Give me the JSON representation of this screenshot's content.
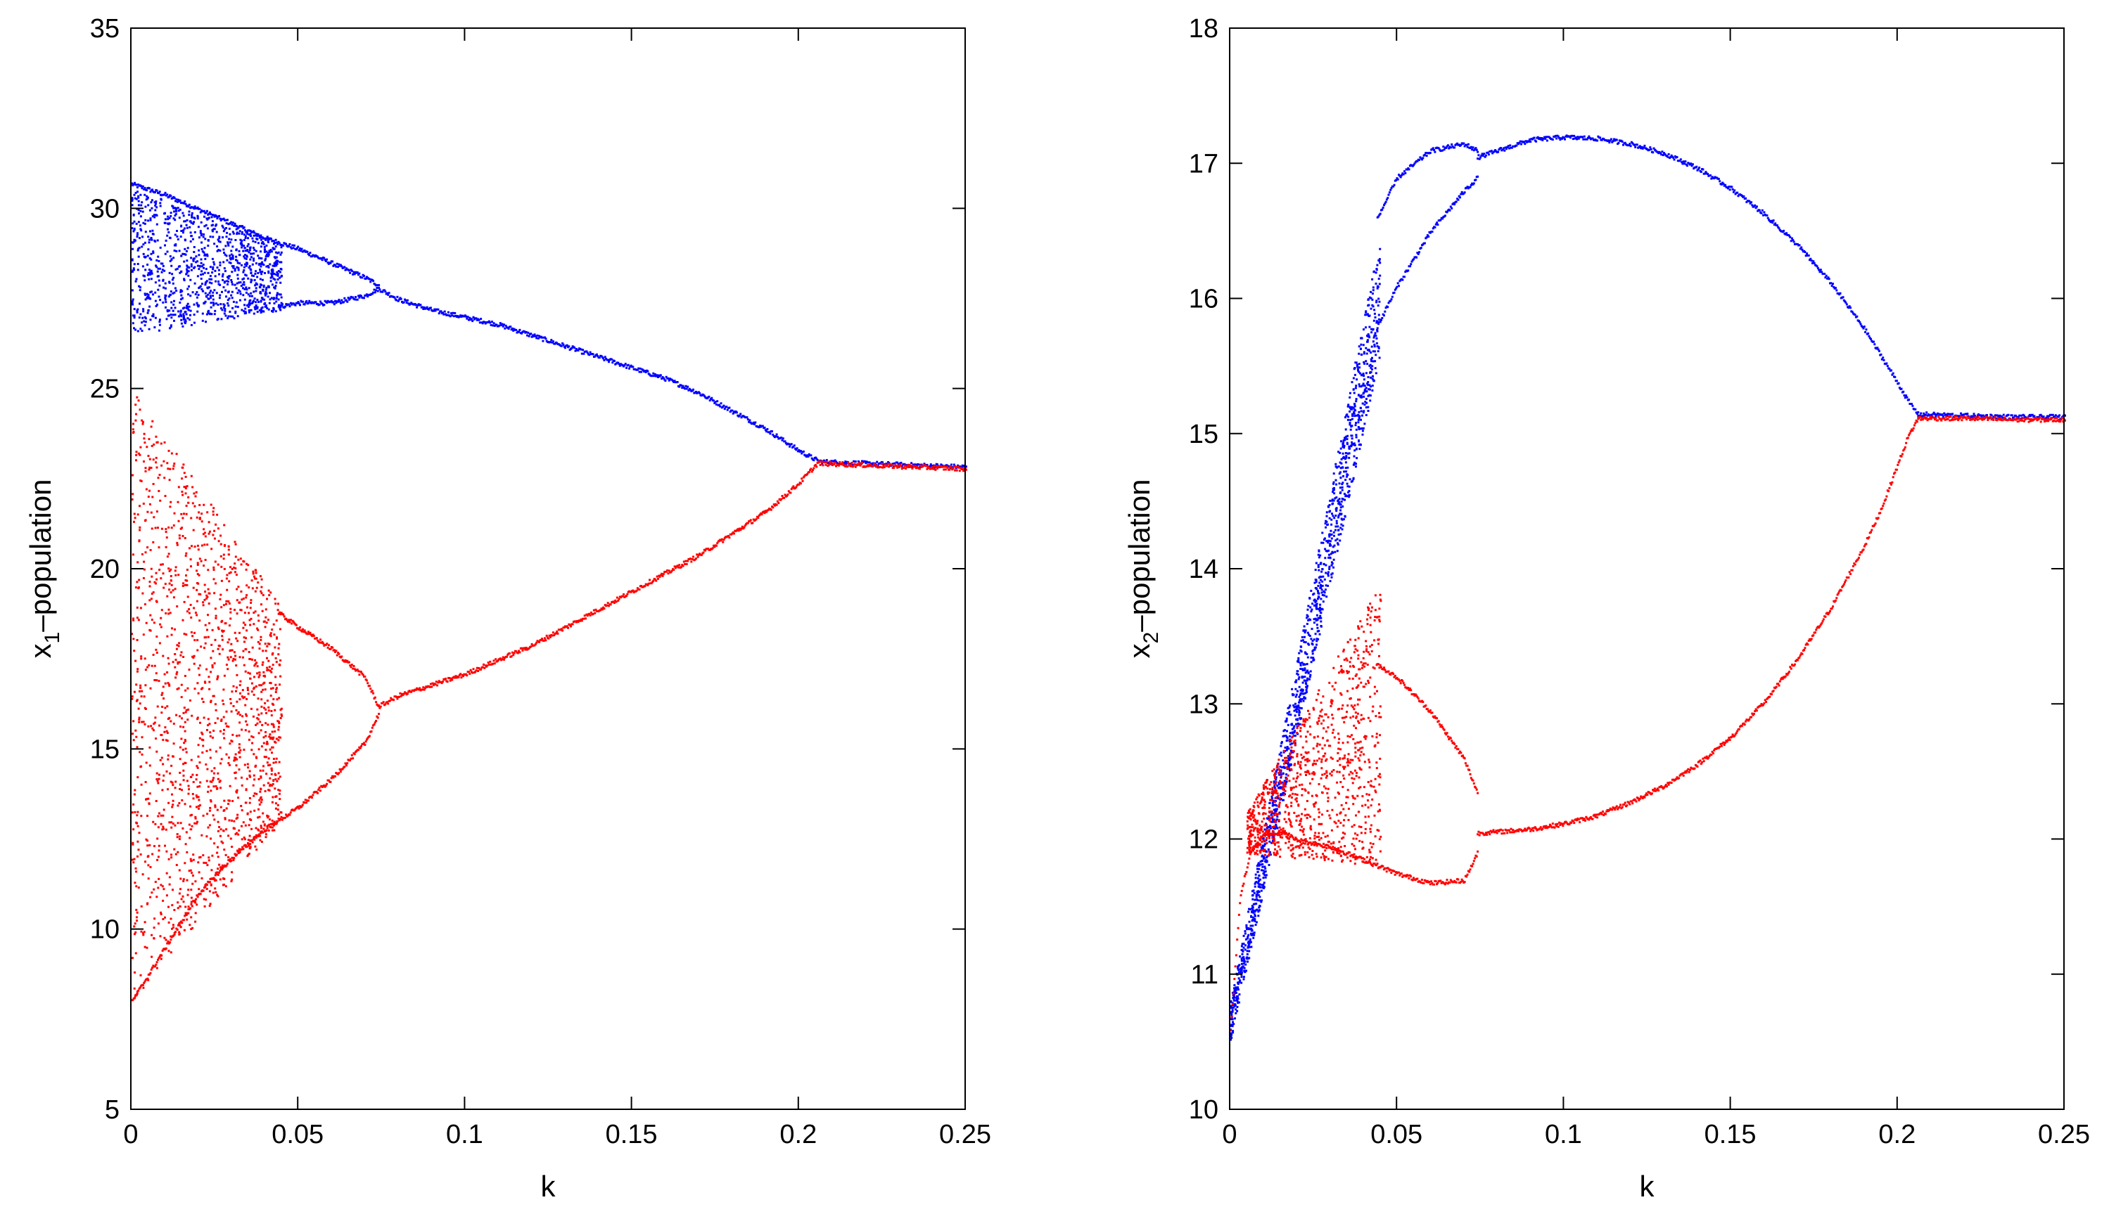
{
  "chart_data": [
    {
      "type": "scatter",
      "title": "",
      "xlabel": "k",
      "ylabel_main": "x",
      "ylabel_sub": "1",
      "ylabel_rest": "–population",
      "xlim": [
        0,
        0.25
      ],
      "ylim": [
        5,
        35
      ],
      "xticks": [
        0,
        0.05,
        0.1,
        0.15,
        0.2,
        0.25
      ],
      "xtick_labels": [
        "0",
        "0.05",
        "0.1",
        "0.15",
        "0.2",
        "0.25"
      ],
      "yticks": [
        5,
        10,
        15,
        20,
        25,
        30,
        35
      ],
      "ytick_labels": [
        "5",
        "10",
        "15",
        "20",
        "25",
        "30",
        "35"
      ],
      "series": [
        {
          "name": "blue",
          "color": "#0000ff",
          "branches": [
            {
              "x": [
                0.0,
                0.01,
                0.02,
                0.03,
                0.04,
                0.05,
                0.06,
                0.07,
                0.074
              ],
              "y": [
                30.7,
                30.4,
                30.0,
                29.6,
                29.2,
                28.9,
                28.5,
                28.1,
                27.9
              ]
            },
            {
              "x": [
                0.044,
                0.05,
                0.06,
                0.07,
                0.074
              ],
              "y": [
                27.3,
                27.4,
                27.4,
                27.6,
                27.8
              ]
            },
            {
              "x": [
                0.074,
                0.08,
                0.09,
                0.1,
                0.11,
                0.12,
                0.13,
                0.14,
                0.15,
                0.16,
                0.17,
                0.18,
                0.19,
                0.195,
                0.2,
                0.203,
                0.206
              ],
              "y": [
                27.8,
                27.5,
                27.2,
                27.0,
                26.8,
                26.5,
                26.2,
                25.9,
                25.6,
                25.3,
                24.9,
                24.4,
                23.9,
                23.6,
                23.3,
                23.15,
                23.0
              ]
            },
            {
              "x": [
                0.206,
                0.22,
                0.235,
                0.25
              ],
              "y": [
                23.0,
                22.95,
                22.9,
                22.85
              ]
            }
          ],
          "clouds": [
            {
              "x_range": [
                0.0,
                0.045
              ],
              "y_top": [
                30.6,
                29.0
              ],
              "y_bottom": [
                26.5,
                27.2
              ],
              "count": 1100
            }
          ]
        },
        {
          "name": "red",
          "color": "#ff0000",
          "branches": [
            {
              "x": [
                0.0,
                0.01,
                0.02,
                0.03,
                0.04,
                0.05,
                0.06,
                0.07,
                0.074
              ],
              "y": [
                8.0,
                9.5,
                11.0,
                12.0,
                12.8,
                13.4,
                14.2,
                15.2,
                16.0
              ]
            },
            {
              "x": [
                0.044,
                0.05,
                0.06,
                0.07,
                0.074
              ],
              "y": [
                18.8,
                18.4,
                17.8,
                17.0,
                16.2
              ]
            },
            {
              "x": [
                0.074,
                0.08,
                0.09,
                0.1,
                0.11,
                0.12,
                0.13,
                0.14,
                0.15,
                0.16,
                0.17,
                0.18,
                0.19,
                0.195,
                0.2,
                0.203,
                0.206
              ],
              "y": [
                16.2,
                16.5,
                16.8,
                17.1,
                17.5,
                17.9,
                18.4,
                18.9,
                19.4,
                19.9,
                20.4,
                21.0,
                21.6,
                22.0,
                22.4,
                22.7,
                23.0
              ]
            },
            {
              "x": [
                0.206,
                0.22,
                0.235,
                0.25
              ],
              "y": [
                22.95,
                22.9,
                22.85,
                22.8
              ]
            }
          ],
          "clouds": [
            {
              "x_range": [
                0.0,
                0.045
              ],
              "y_top": [
                25.0,
                19.0
              ],
              "y_bottom": [
                8.0,
                13.0
              ],
              "count": 1600
            }
          ]
        }
      ]
    },
    {
      "type": "scatter",
      "title": "",
      "xlabel": "k",
      "ylabel_main": "x",
      "ylabel_sub": "2",
      "ylabel_rest": "–population",
      "xlim": [
        0,
        0.25
      ],
      "ylim": [
        10,
        18
      ],
      "xticks": [
        0,
        0.05,
        0.1,
        0.15,
        0.2,
        0.25
      ],
      "xtick_labels": [
        "0",
        "0.05",
        "0.1",
        "0.15",
        "0.2",
        "0.25"
      ],
      "yticks": [
        10,
        11,
        12,
        13,
        14,
        15,
        16,
        17,
        18
      ],
      "ytick_labels": [
        "10",
        "11",
        "12",
        "13",
        "14",
        "15",
        "16",
        "17",
        "18"
      ],
      "series": [
        {
          "name": "blue",
          "color": "#0000ff",
          "branches": [
            {
              "x": [
                0.044,
                0.05,
                0.06,
                0.07,
                0.074
              ],
              "y": [
                16.6,
                16.9,
                17.1,
                17.15,
                17.1
              ]
            },
            {
              "x": [
                0.044,
                0.05,
                0.06,
                0.07,
                0.074
              ],
              "y": [
                15.8,
                16.1,
                16.5,
                16.8,
                16.9
              ]
            },
            {
              "x": [
                0.074,
                0.08,
                0.09,
                0.1,
                0.11,
                0.12,
                0.13,
                0.14,
                0.15,
                0.16,
                0.17,
                0.18,
                0.19,
                0.195,
                0.2,
                0.203,
                0.206
              ],
              "y": [
                17.05,
                17.1,
                17.18,
                17.2,
                17.19,
                17.15,
                17.08,
                16.97,
                16.82,
                16.63,
                16.4,
                16.12,
                15.78,
                15.58,
                15.38,
                15.25,
                15.15
              ]
            },
            {
              "x": [
                0.206,
                0.22,
                0.235,
                0.25
              ],
              "y": [
                15.15,
                15.14,
                15.13,
                15.13
              ]
            }
          ],
          "clouds": [
            {
              "x_range": [
                0.0,
                0.045
              ],
              "y_top": [
                10.8,
                16.5
              ],
              "y_bottom": [
                10.5,
                15.6
              ],
              "count": 1400
            }
          ]
        },
        {
          "name": "red",
          "color": "#ff0000",
          "branches": [
            {
              "x": [
                0.0,
                0.003,
                0.006,
                0.01,
                0.015,
                0.02,
                0.03,
                0.04,
                0.05,
                0.06,
                0.07,
                0.074
              ],
              "y": [
                10.6,
                11.6,
                11.9,
                12.05,
                12.05,
                12.0,
                11.95,
                11.85,
                11.75,
                11.68,
                11.7,
                11.9
              ]
            },
            {
              "x": [
                0.044,
                0.05,
                0.06,
                0.07,
                0.074
              ],
              "y": [
                13.3,
                13.2,
                12.95,
                12.6,
                12.35
              ]
            },
            {
              "x": [
                0.074,
                0.08,
                0.09,
                0.1,
                0.11,
                0.12,
                0.13,
                0.14,
                0.15,
                0.16,
                0.17,
                0.18,
                0.19,
                0.195,
                0.2,
                0.203,
                0.206
              ],
              "y": [
                12.05,
                12.06,
                12.08,
                12.12,
                12.18,
                12.28,
                12.4,
                12.56,
                12.76,
                13.02,
                13.34,
                13.72,
                14.18,
                14.45,
                14.78,
                14.98,
                15.12
              ]
            },
            {
              "x": [
                0.206,
                0.22,
                0.235,
                0.25
              ],
              "y": [
                15.12,
                15.12,
                15.11,
                15.11
              ]
            }
          ],
          "clouds": [
            {
              "x_range": [
                0.005,
                0.045
              ],
              "y_top": [
                12.2,
                13.9
              ],
              "y_bottom": [
                11.9,
                11.8
              ],
              "count": 1000
            }
          ]
        }
      ]
    }
  ]
}
